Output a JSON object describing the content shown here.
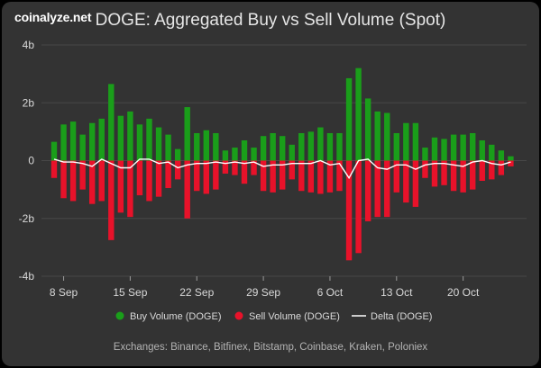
{
  "brand": "coinalyze.net",
  "chart_data": {
    "type": "bar",
    "title": "DOGE: Aggregated Buy vs Sell Volume (Spot)",
    "yticks": [
      "4b",
      "2b",
      "0",
      "-2b",
      "-4b"
    ],
    "ylim": [
      -4,
      4
    ],
    "xticks": [
      "8 Sep",
      "15 Sep",
      "22 Sep",
      "29 Sep",
      "6 Oct",
      "13 Oct",
      "20 Oct"
    ],
    "series": [
      {
        "name": "Buy Volume (DOGE)",
        "color": "#1a9e1a",
        "values": [
          0.65,
          1.25,
          1.35,
          0.9,
          1.3,
          1.45,
          2.65,
          1.55,
          1.7,
          1.25,
          1.45,
          1.15,
          0.9,
          0.4,
          1.85,
          0.95,
          1.05,
          0.95,
          0.35,
          0.45,
          0.7,
          0.45,
          0.85,
          0.95,
          0.85,
          0.55,
          0.95,
          1.0,
          1.15,
          0.95,
          0.95,
          2.85,
          3.2,
          2.15,
          1.7,
          1.65,
          0.95,
          1.3,
          1.3,
          0.45,
          0.8,
          0.75,
          0.9,
          0.9,
          0.95,
          0.7,
          0.55,
          0.35,
          0.15
        ]
      },
      {
        "name": "Sell Volume (DOGE)",
        "color": "#e8122a",
        "values": [
          -0.6,
          -1.3,
          -1.4,
          -1.0,
          -1.5,
          -1.4,
          -2.75,
          -1.8,
          -1.95,
          -1.2,
          -1.4,
          -1.25,
          -0.95,
          -0.65,
          -2.0,
          -1.05,
          -1.15,
          -1.0,
          -0.45,
          -0.5,
          -0.8,
          -0.5,
          -1.05,
          -1.1,
          -1.0,
          -0.65,
          -1.05,
          -1.1,
          -1.15,
          -1.1,
          -1.05,
          -3.45,
          -3.2,
          -2.1,
          -1.95,
          -1.95,
          -1.1,
          -1.45,
          -1.6,
          -0.6,
          -0.9,
          -0.85,
          -1.05,
          -1.1,
          -1.0,
          -0.7,
          -0.65,
          -0.5,
          -0.2
        ]
      },
      {
        "name": "Delta (DOGE)",
        "color": "#ffffff",
        "values": [
          0.05,
          -0.05,
          -0.05,
          -0.1,
          -0.2,
          0.05,
          -0.1,
          -0.25,
          -0.25,
          0.05,
          0.05,
          -0.1,
          -0.05,
          -0.25,
          -0.15,
          -0.1,
          -0.1,
          -0.05,
          -0.1,
          -0.05,
          -0.1,
          -0.05,
          -0.2,
          -0.15,
          -0.15,
          -0.1,
          -0.1,
          -0.1,
          0.0,
          -0.15,
          -0.1,
          -0.6,
          0.0,
          0.05,
          -0.25,
          -0.3,
          -0.15,
          -0.15,
          -0.3,
          -0.15,
          -0.1,
          -0.1,
          -0.15,
          -0.2,
          -0.05,
          0.0,
          -0.1,
          -0.15,
          -0.05
        ]
      }
    ],
    "grid": "horizontal",
    "legend_position": "bottom"
  },
  "footer": "Exchanges: Binance, Bitfinex, Bitstamp, Coinbase, Kraken, Poloniex"
}
